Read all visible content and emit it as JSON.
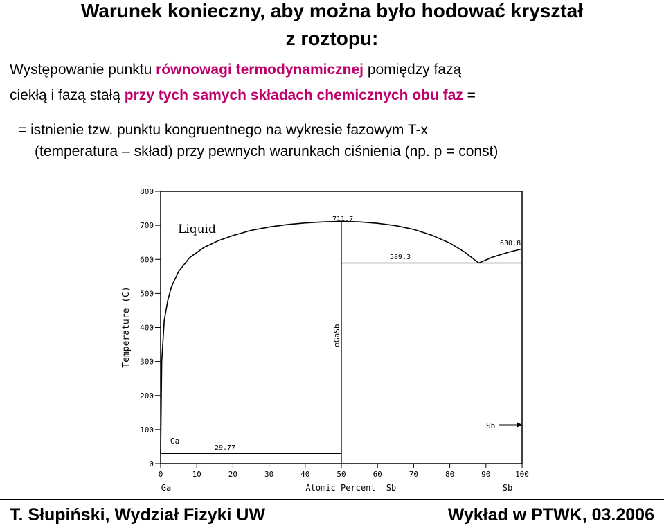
{
  "heading": {
    "line1": "Warunek konieczny, aby można było hodować kryształ",
    "line2": "z  roztopu:"
  },
  "body": {
    "l1_a": "Występowanie  punktu ",
    "l1_b": "równowagi termodynamicznej",
    "l1_c": "  pomiędzy fazą",
    "l2_a": "ciekłą i fazą stałą ",
    "l2_b": "przy tych samych składach chemicznych obu faz",
    "l2_c": "  =",
    "l3": "=  istnienie tzw. punktu kongruentnego na wykresie fazowym  T-x",
    "l4": "(temperatura – skład)  przy pewnych warunkach ciśnienia (np. p = const)"
  },
  "colors": {
    "highlight": "#c0006a",
    "plot_line": "#000000"
  },
  "chart_data": {
    "type": "line",
    "xlabel": "Atomic Percent",
    "xlabel_suffix": "Sb",
    "ylabel": "Temperature (C)",
    "xlim": [
      0,
      100
    ],
    "ylim": [
      0,
      800
    ],
    "x_ticks": [
      "0",
      "10",
      "20",
      "30",
      "40",
      "50",
      "60",
      "70",
      "80",
      "90",
      "100"
    ],
    "y_ticks": [
      "0",
      "100",
      "200",
      "300",
      "400",
      "500",
      "600",
      "700",
      "800"
    ],
    "end_labels": {
      "left": "Ga",
      "right": "Sb"
    },
    "phase_labels": {
      "liquid": "Liquid",
      "compound": "αGaSb",
      "ga": "Ga",
      "sb": "Sb"
    },
    "annotations": {
      "congruent": {
        "x": 50,
        "y": 711.7,
        "label": "711.7"
      },
      "eutectic": {
        "x": 88,
        "y": 589.3,
        "label": "589.3"
      },
      "sb_melt": {
        "x": 100,
        "y": 630.8,
        "label": "630.8"
      },
      "ga_eutectic": {
        "x": 0,
        "y": 29.77,
        "label": "29.77"
      }
    },
    "series": [
      {
        "x": [
          0,
          0.3,
          1,
          2,
          3,
          5,
          8,
          12,
          16,
          20,
          25,
          30,
          35,
          40,
          45,
          50
        ],
        "y": [
          29.77,
          300,
          420,
          480,
          520,
          565,
          605,
          635,
          655,
          670,
          685,
          695,
          702,
          707,
          710,
          711.7
        ]
      },
      {
        "x": [
          50,
          55,
          60,
          65,
          70,
          75,
          80,
          84,
          88
        ],
        "y": [
          711.7,
          710,
          706,
          699,
          688,
          671,
          648,
          622,
          589.3
        ]
      },
      {
        "x": [
          88,
          92,
          96,
          100
        ],
        "y": [
          589.3,
          607,
          620,
          630.8
        ]
      }
    ],
    "solidus": [
      {
        "x1": 50,
        "x2": 100,
        "y": 589.3
      },
      {
        "x1": 0,
        "x2": 50,
        "y": 29.77
      }
    ]
  }
}
